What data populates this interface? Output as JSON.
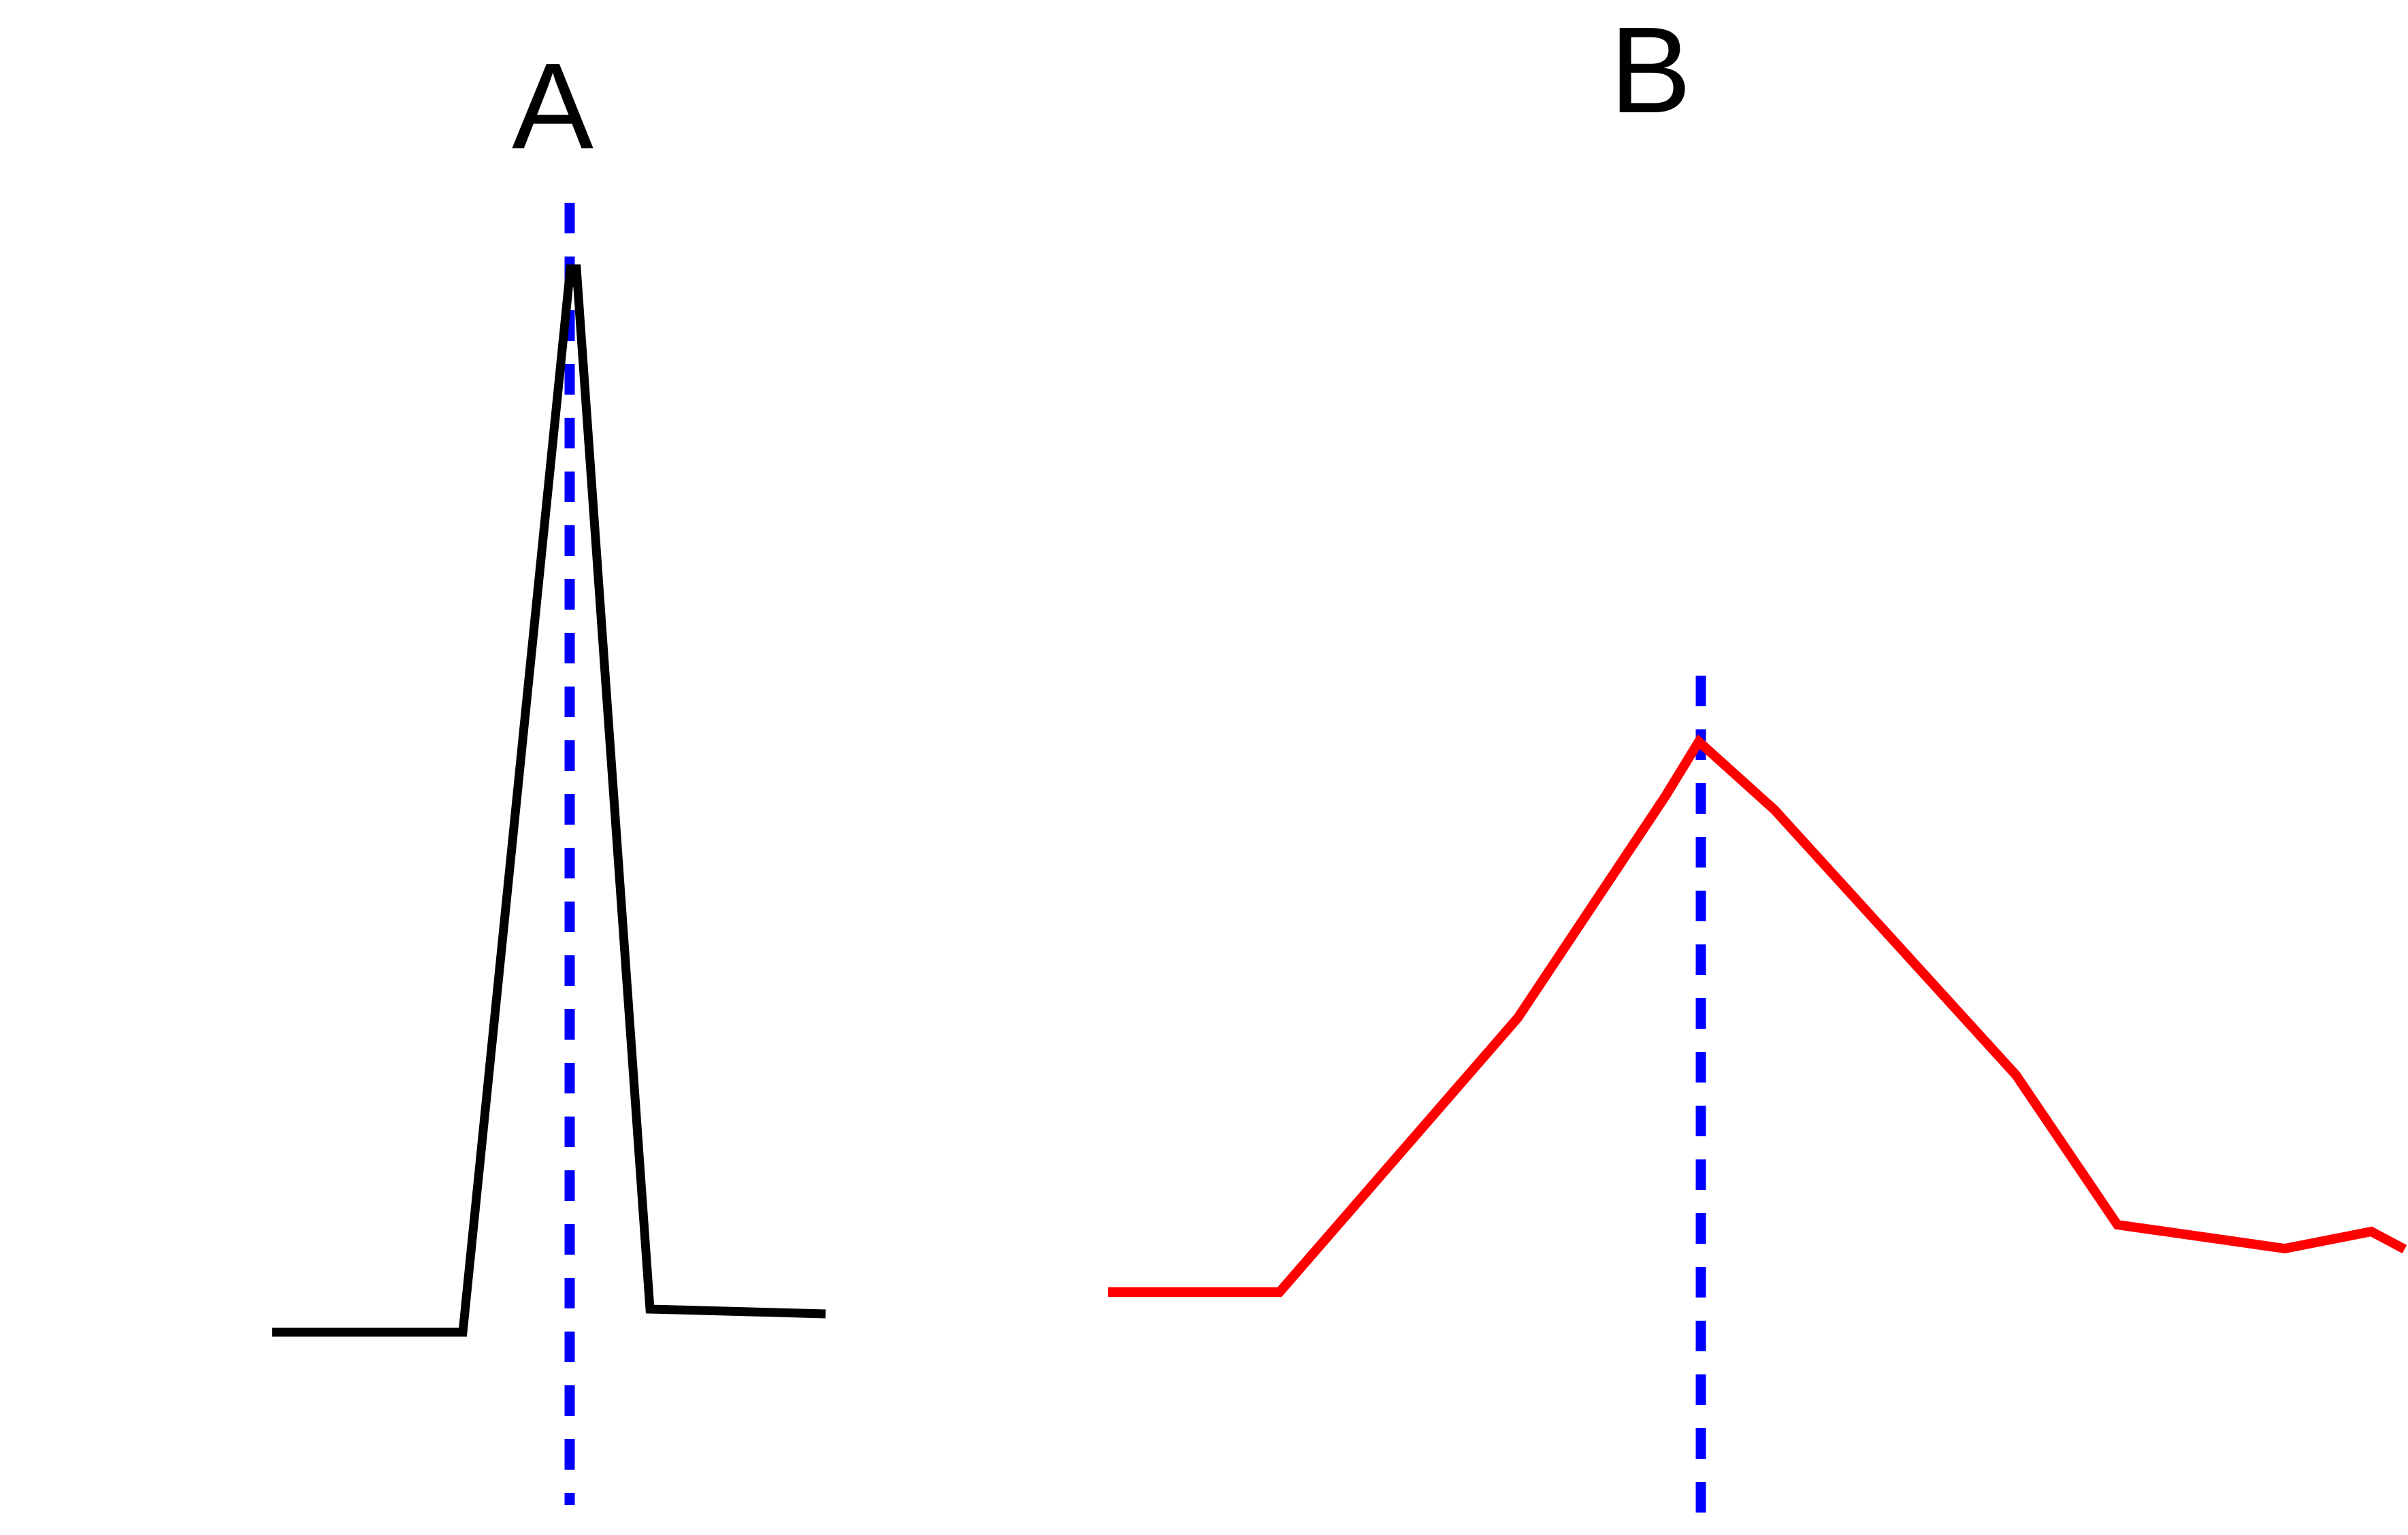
{
  "panels": [
    {
      "label": "A",
      "trace_color": "#000000",
      "marker_color": "#0000ff"
    },
    {
      "label": "B",
      "trace_color": "#ff0000",
      "marker_color": "#0000ff"
    }
  ]
}
